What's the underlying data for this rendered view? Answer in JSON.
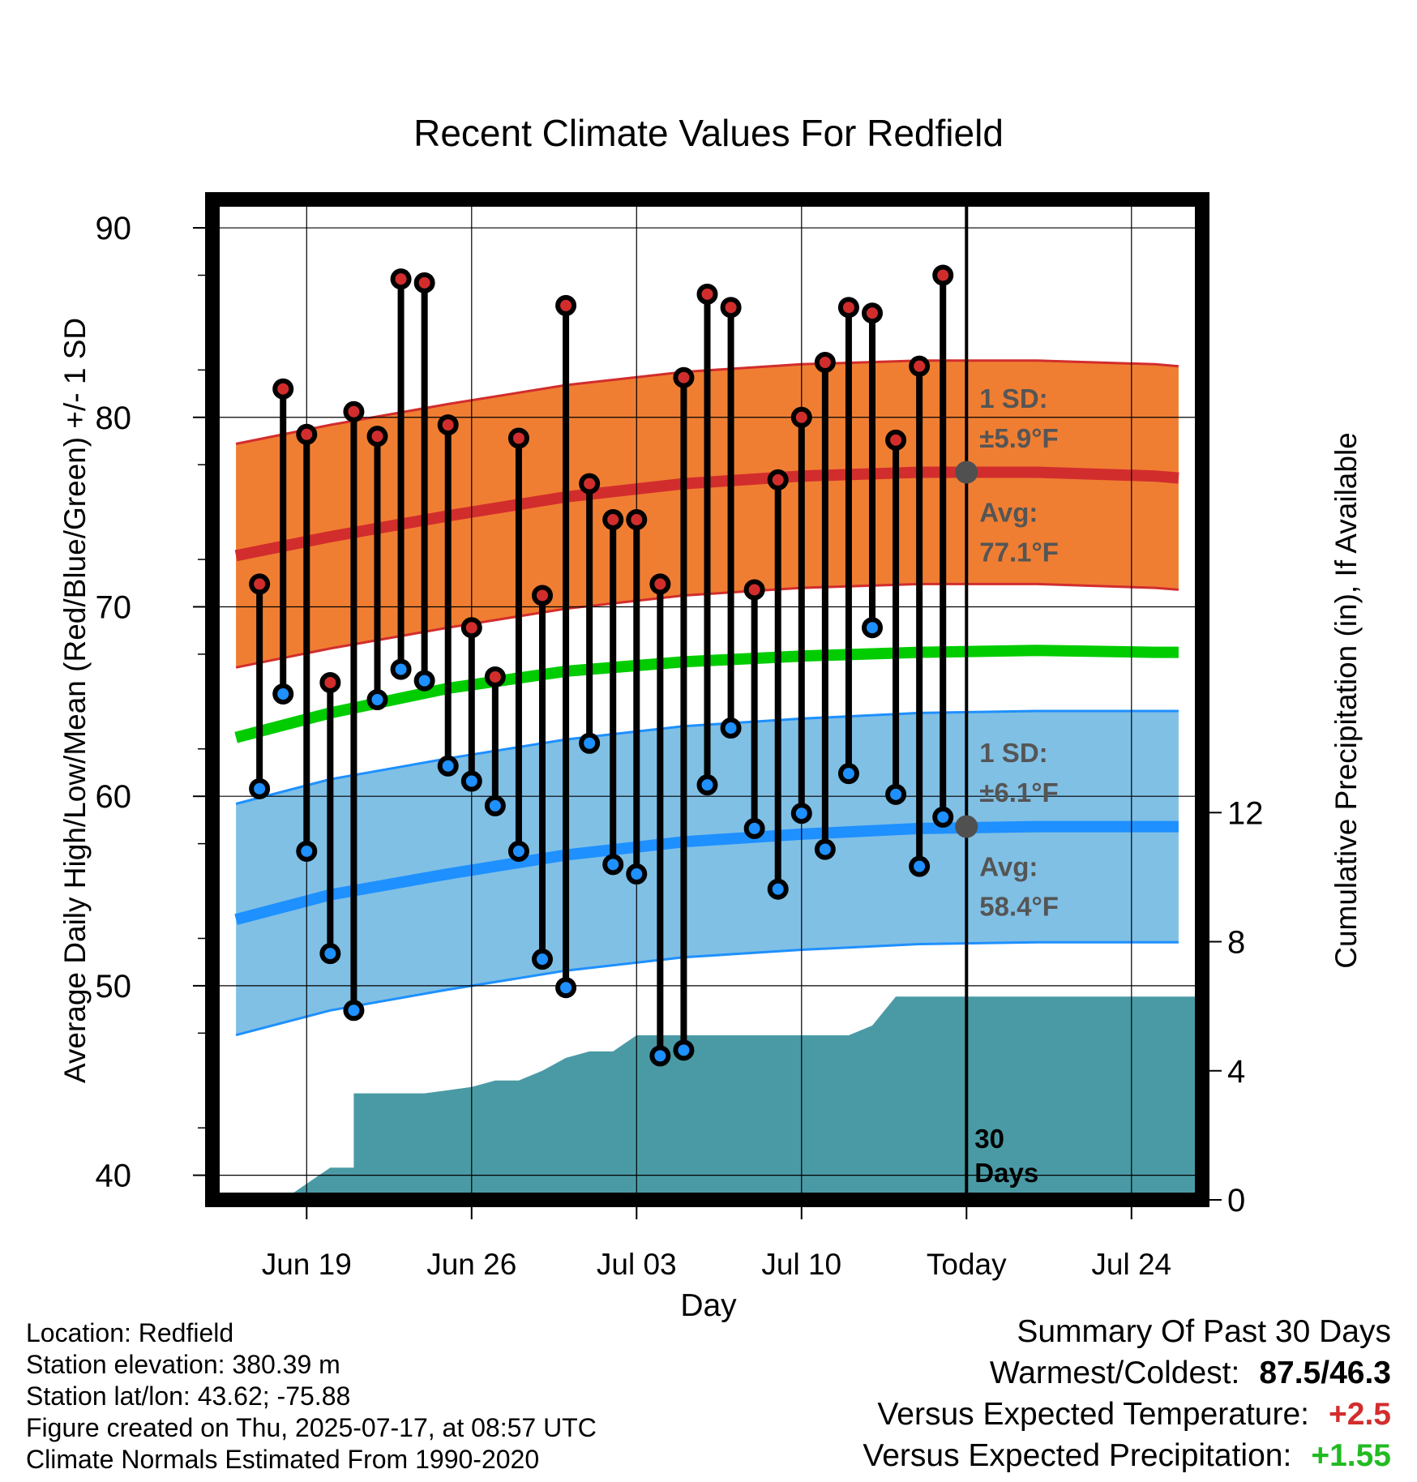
{
  "title": "Recent Climate Values For Redfield",
  "chart_data": {
    "type": "line",
    "title": "Recent Climate Values For Redfield",
    "xlabel": "Day",
    "ylabel": "Average Daily High/Low/Mean (Red/Blue/Green) +/- 1 SD",
    "y2label": "Cumulative Precipitation (in), If Available",
    "ylim": [
      38.7,
      91.5
    ],
    "y2lim": [
      0,
      31
    ],
    "x_domain": [
      "2025-06-15",
      "2025-07-27"
    ],
    "x_ticks": [
      {
        "date": "2025-06-19",
        "label": "Jun 19"
      },
      {
        "date": "2025-06-26",
        "label": "Jun 26"
      },
      {
        "date": "2025-07-03",
        "label": "Jul 03"
      },
      {
        "date": "2025-07-10",
        "label": "Jul 10"
      },
      {
        "date": "2025-07-17",
        "label": "Today"
      },
      {
        "date": "2025-07-24",
        "label": "Jul 24"
      }
    ],
    "y_ticks": [
      40,
      50,
      60,
      70,
      80,
      90
    ],
    "y2_ticks": [
      0,
      4,
      8,
      12
    ],
    "today": "2025-07-17",
    "days_label": "30\nDays",
    "normals": {
      "dates": [
        "2025-06-16",
        "2025-06-20",
        "2025-06-25",
        "2025-06-30",
        "2025-07-05",
        "2025-07-10",
        "2025-07-15",
        "2025-07-20",
        "2025-07-25",
        "2025-07-26"
      ],
      "high_avg": [
        72.7,
        73.7,
        74.8,
        75.8,
        76.5,
        76.9,
        77.1,
        77.1,
        76.9,
        76.8
      ],
      "high_sd": 5.9,
      "low_avg": [
        53.5,
        54.8,
        55.9,
        56.9,
        57.6,
        58.0,
        58.3,
        58.4,
        58.4,
        58.4
      ],
      "low_sd": 6.1,
      "mean_avg": [
        63.1,
        64.4,
        65.7,
        66.6,
        67.1,
        67.4,
        67.6,
        67.7,
        67.6,
        67.6
      ]
    },
    "series": [
      {
        "name": "High",
        "color": "#d22d2d",
        "values": [
          71.2,
          81.5,
          79.1,
          66.0,
          80.3,
          79.0,
          87.3,
          87.1,
          79.6,
          68.9,
          66.3,
          78.9,
          70.6,
          85.9,
          76.5,
          74.6,
          74.6,
          71.2,
          82.1,
          86.5,
          85.8,
          70.9,
          76.7,
          80.0,
          82.9,
          85.8,
          85.5,
          78.8,
          82.7,
          87.5
        ]
      },
      {
        "name": "Low",
        "color": "#1e90ff",
        "values": [
          60.4,
          65.4,
          57.1,
          51.7,
          48.7,
          65.1,
          66.7,
          66.1,
          61.6,
          60.8,
          59.5,
          57.1,
          51.4,
          49.9,
          62.8,
          56.4,
          55.9,
          46.3,
          46.6,
          60.6,
          63.6,
          58.3,
          55.1,
          59.1,
          57.2,
          61.2,
          68.9,
          60.1,
          56.3,
          58.9
        ]
      },
      {
        "name": "Precipitation",
        "color": "#4a9aa5",
        "dates": [
          "2025-06-15",
          "2025-06-18",
          "2025-06-19",
          "2025-06-20",
          "2025-06-21",
          "2025-06-21",
          "2025-06-22",
          "2025-06-23",
          "2025-06-24",
          "2025-06-25",
          "2025-06-26",
          "2025-06-27",
          "2025-06-28",
          "2025-06-29",
          "2025-06-30",
          "2025-07-01",
          "2025-07-02",
          "2025-07-03",
          "2025-07-04",
          "2025-07-05",
          "2025-07-07",
          "2025-07-10",
          "2025-07-12",
          "2025-07-13",
          "2025-07-14",
          "2025-07-27"
        ],
        "values": [
          0,
          0,
          0.5,
          1.0,
          1.0,
          3.3,
          3.3,
          3.3,
          3.3,
          3.4,
          3.5,
          3.7,
          3.7,
          4.0,
          4.4,
          4.6,
          4.6,
          5.1,
          5.1,
          5.1,
          5.1,
          5.1,
          5.1,
          5.4,
          6.3,
          6.3
        ]
      }
    ],
    "first_obs_date": "2025-06-17",
    "annotations": {
      "high_sd_label": "1 SD:",
      "high_sd_value": "±5.9°F",
      "high_avg_label": "Avg:",
      "high_avg_value": "77.1°F",
      "low_sd_label": "1 SD:",
      "low_sd_value": "±6.1°F",
      "low_avg_label": "Avg:",
      "low_avg_value": "58.4°F",
      "today_high_avg": 77.1,
      "today_low_avg": 58.4
    }
  },
  "info": {
    "location": "Location: Redfield",
    "elevation": "Station elevation: 380.39 m",
    "latlon": "Station lat/lon: 43.62; -75.88",
    "created": "Figure created on Thu, 2025-07-17, at 08:57 UTC",
    "normals": "Climate Normals Estimated From 1990-2020"
  },
  "summary": {
    "title": "Summary Of Past 30 Days",
    "warmest_label": "Warmest/Coldest:",
    "warmest_value": "87.5/46.3",
    "temp_label": "Versus Expected Temperature:",
    "temp_value": "+2.5",
    "precip_label": "Versus Expected Precipitation:",
    "precip_value": "+1.55"
  },
  "colors": {
    "high_band": "#f07e32",
    "high_line": "#d22d2d",
    "low_band": "#80c0e5",
    "low_line": "#1e90ff",
    "mean_line": "#00cc00",
    "precip": "#4a9aa5",
    "marker_today": "#505050",
    "annotation_text": "#555555"
  }
}
